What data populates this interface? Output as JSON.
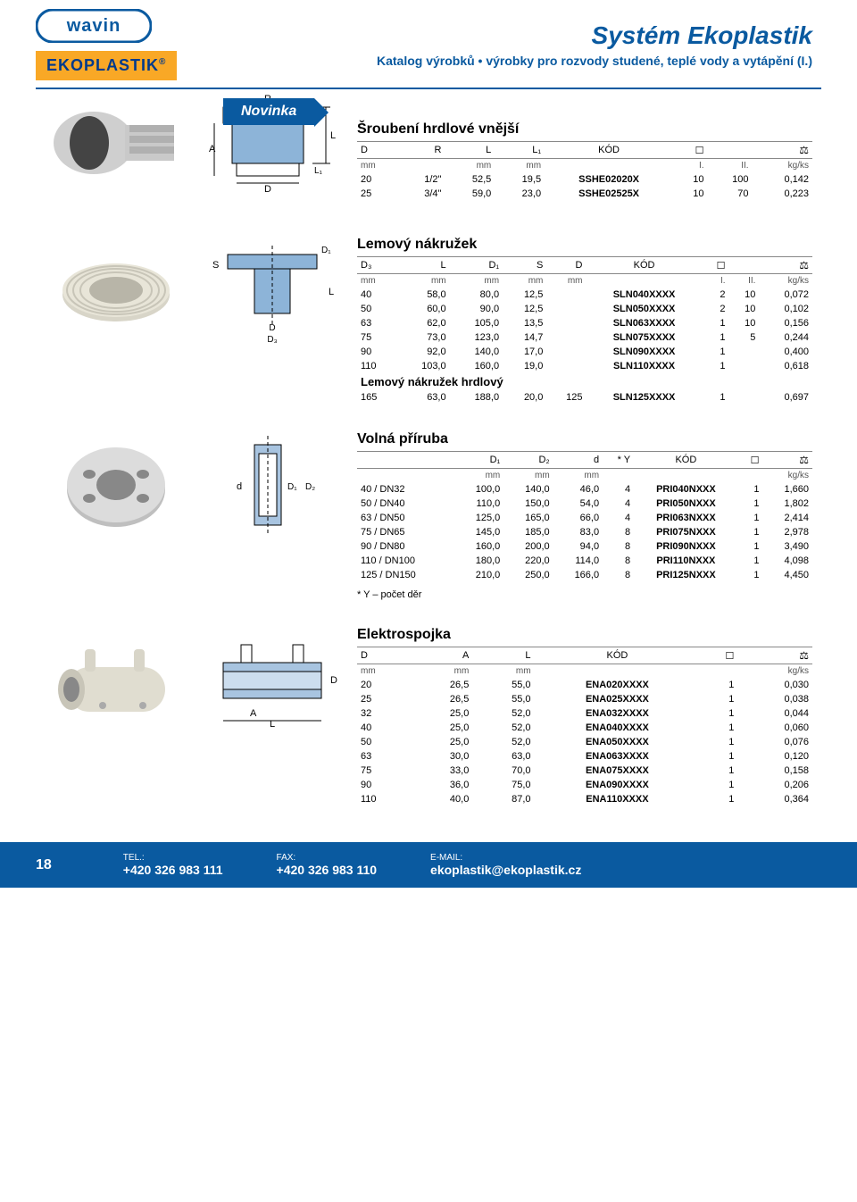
{
  "header": {
    "brand": "wavin",
    "badge": "EKOPLASTIK",
    "badge_reg": "®",
    "title": "Systém Ekoplastik",
    "subtitle": "Katalog výrobků • výrobky pro rozvody studené, teplé vody a vytápění (I.)",
    "novinka": "Novinka"
  },
  "colors": {
    "brand_blue": "#0a5aa0",
    "badge_orange": "#f9a826",
    "text_blue": "#003a8c"
  },
  "table1": {
    "title": "Šroubení hrdlové vnější",
    "head_top": [
      "D",
      "R",
      "L",
      "L₁",
      "KÓD",
      "",
      "",
      ""
    ],
    "head_bot": [
      "mm",
      "",
      "mm",
      "mm",
      "",
      "I.",
      "II.",
      "kg/ks"
    ],
    "rows": [
      [
        "20",
        "1/2\"",
        "52,5",
        "19,5",
        "SSHE02020X",
        "10",
        "100",
        "0,142"
      ],
      [
        "25",
        "3/4\"",
        "59,0",
        "23,0",
        "SSHE02525X",
        "10",
        "70",
        "0,223"
      ]
    ]
  },
  "table2": {
    "title": "Lemový nákružek",
    "head_top": [
      "D₃",
      "L",
      "D₁",
      "S",
      "D",
      "KÓD",
      "",
      "",
      ""
    ],
    "head_bot": [
      "mm",
      "mm",
      "mm",
      "mm",
      "mm",
      "",
      "I.",
      "II.",
      "kg/ks"
    ],
    "rows": [
      [
        "40",
        "58,0",
        "80,0",
        "12,5",
        "",
        "SLN040XXXX",
        "2",
        "10",
        "0,072"
      ],
      [
        "50",
        "60,0",
        "90,0",
        "12,5",
        "",
        "SLN050XXXX",
        "2",
        "10",
        "0,102"
      ],
      [
        "63",
        "62,0",
        "105,0",
        "13,5",
        "",
        "SLN063XXXX",
        "1",
        "10",
        "0,156"
      ],
      [
        "75",
        "73,0",
        "123,0",
        "14,7",
        "",
        "SLN075XXXX",
        "1",
        "5",
        "0,244"
      ],
      [
        "90",
        "92,0",
        "140,0",
        "17,0",
        "",
        "SLN090XXXX",
        "1",
        "",
        "0,400"
      ],
      [
        "110",
        "103,0",
        "160,0",
        "19,0",
        "",
        "SLN110XXXX",
        "1",
        "",
        "0,618"
      ]
    ],
    "sub_title": "Lemový nákružek hrdlový",
    "sub_rows": [
      [
        "165",
        "63,0",
        "188,0",
        "20,0",
        "125",
        "SLN125XXXX",
        "1",
        "",
        "0,697"
      ]
    ]
  },
  "table3": {
    "title": "Volná příruba",
    "head_top": [
      "",
      "D₁",
      "D₂",
      "d",
      "* Y",
      "KÓD",
      "",
      ""
    ],
    "head_bot": [
      "",
      "mm",
      "mm",
      "mm",
      "",
      "",
      "",
      "kg/ks"
    ],
    "rows": [
      [
        "40 / DN32",
        "100,0",
        "140,0",
        "46,0",
        "4",
        "PRI040NXXX",
        "1",
        "1,660"
      ],
      [
        "50 / DN40",
        "110,0",
        "150,0",
        "54,0",
        "4",
        "PRI050NXXX",
        "1",
        "1,802"
      ],
      [
        "63 / DN50",
        "125,0",
        "165,0",
        "66,0",
        "4",
        "PRI063NXXX",
        "1",
        "2,414"
      ],
      [
        "75 / DN65",
        "145,0",
        "185,0",
        "83,0",
        "8",
        "PRI075NXXX",
        "1",
        "2,978"
      ],
      [
        "90 / DN80",
        "160,0",
        "200,0",
        "94,0",
        "8",
        "PRI090NXXX",
        "1",
        "3,490"
      ],
      [
        "110 / DN100",
        "180,0",
        "220,0",
        "114,0",
        "8",
        "PRI110NXXX",
        "1",
        "4,098"
      ],
      [
        "125 / DN150",
        "210,0",
        "250,0",
        "166,0",
        "8",
        "PRI125NXXX",
        "1",
        "4,450"
      ]
    ],
    "footnote": "* Y – počet děr"
  },
  "table4": {
    "title": "Elektrospojka",
    "head_top": [
      "D",
      "A",
      "L",
      "KÓD",
      "",
      ""
    ],
    "head_bot": [
      "mm",
      "mm",
      "mm",
      "",
      "",
      "kg/ks"
    ],
    "rows": [
      [
        "20",
        "26,5",
        "55,0",
        "ENA020XXXX",
        "1",
        "0,030"
      ],
      [
        "25",
        "26,5",
        "55,0",
        "ENA025XXXX",
        "1",
        "0,038"
      ],
      [
        "32",
        "25,0",
        "52,0",
        "ENA032XXXX",
        "1",
        "0,044"
      ],
      [
        "40",
        "25,0",
        "52,0",
        "ENA040XXXX",
        "1",
        "0,060"
      ],
      [
        "50",
        "25,0",
        "52,0",
        "ENA050XXXX",
        "1",
        "0,076"
      ],
      [
        "63",
        "30,0",
        "63,0",
        "ENA063XXXX",
        "1",
        "0,120"
      ],
      [
        "75",
        "33,0",
        "70,0",
        "ENA075XXXX",
        "1",
        "0,158"
      ],
      [
        "90",
        "36,0",
        "75,0",
        "ENA090XXXX",
        "1",
        "0,206"
      ],
      [
        "110",
        "40,0",
        "87,0",
        "ENA110XXXX",
        "1",
        "0,364"
      ]
    ]
  },
  "footer": {
    "page": "18",
    "tel_label": "TEL.:",
    "tel": "+420 326 983 111",
    "fax_label": "FAX:",
    "fax": "+420 326 983 110",
    "email_label": "E-MAIL:",
    "email": "ekoplastik@ekoplastik.cz"
  }
}
